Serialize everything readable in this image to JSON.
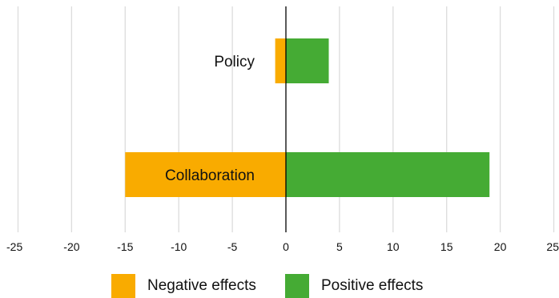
{
  "chart_data": {
    "type": "bar",
    "orientation": "horizontal",
    "stacked": true,
    "categories": [
      "Policy",
      "Collaboration"
    ],
    "series": [
      {
        "name": "Negative effects",
        "values": [
          -1,
          -15
        ],
        "color": "#f9ab00"
      },
      {
        "name": "Positive effects",
        "values": [
          4,
          19
        ],
        "color": "#45ab34"
      }
    ],
    "title": "",
    "xlabel": "",
    "ylabel": "",
    "xlim": [
      -25,
      25
    ],
    "xticks": [
      -25,
      -20,
      -15,
      -10,
      -5,
      0,
      5,
      10,
      15,
      20,
      25
    ],
    "xtick_labels": [
      "-25",
      "-20",
      "-15",
      "-10",
      "-5",
      "0",
      "5",
      "10",
      "15",
      "20",
      "25"
    ],
    "grid": "vertical",
    "legend_position": "bottom",
    "category_labels_position": "inside-left-of-zero"
  },
  "legend": {
    "negative_label": "Negative effects",
    "positive_label": "Positive effects"
  },
  "colors": {
    "negative": "#f9ab00",
    "positive": "#45ab34",
    "grid": "#dcdcdc",
    "axis": "#000000",
    "text": "#111111"
  }
}
